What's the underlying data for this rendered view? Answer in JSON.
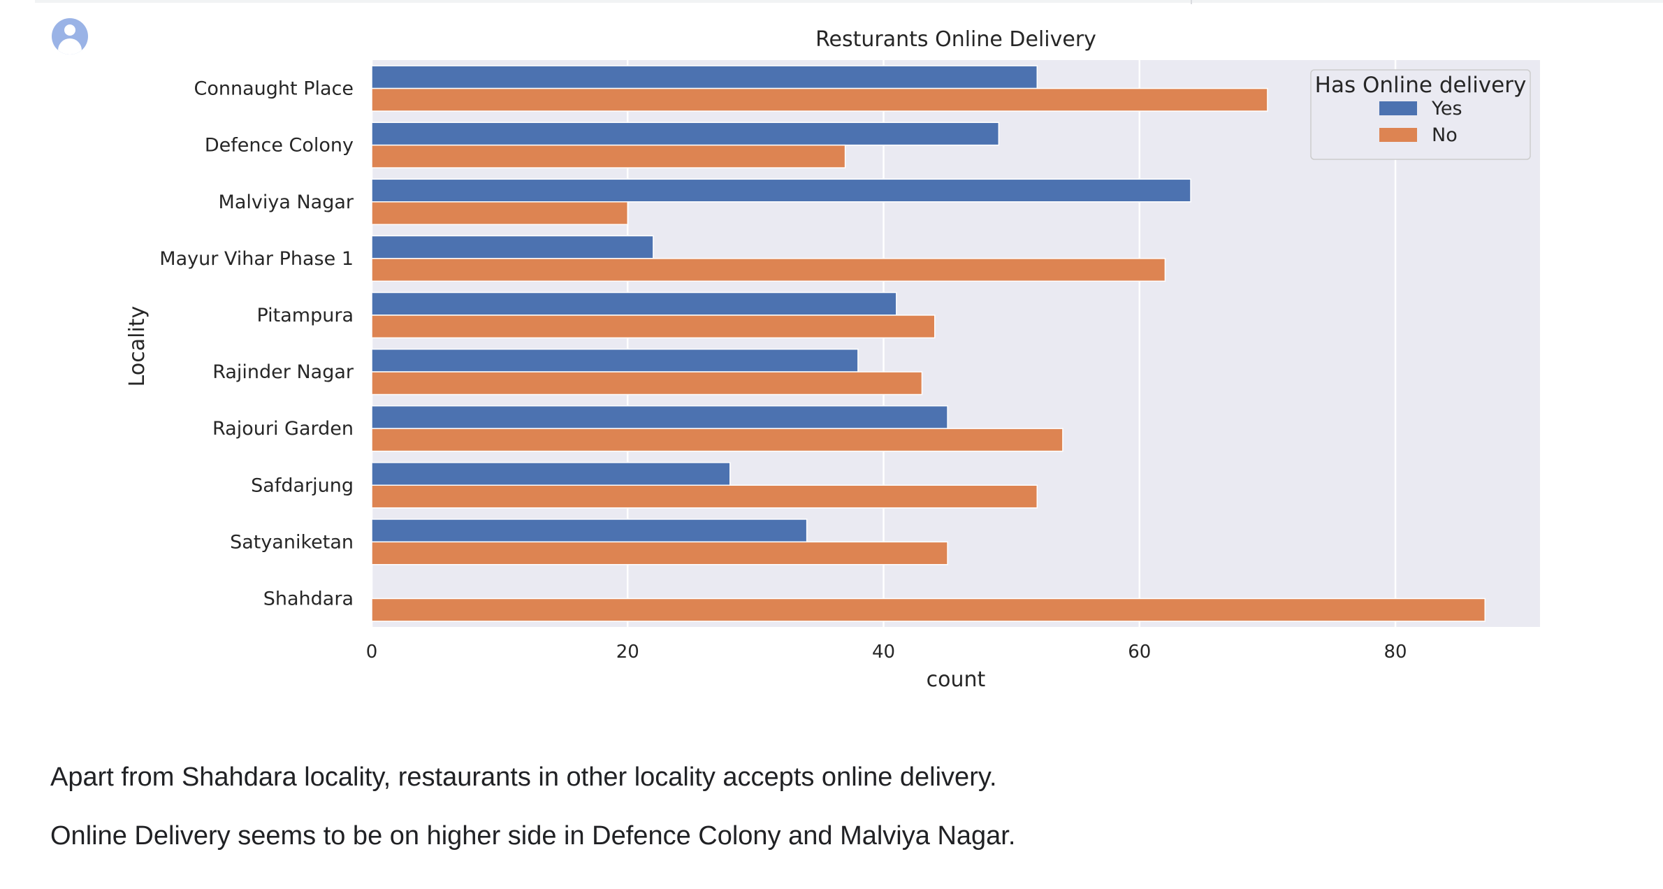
{
  "output_cell": {
    "avatar_icon": "account-circle-icon"
  },
  "chart_data": {
    "type": "bar",
    "orientation": "horizontal",
    "title": "Resturants Online Delivery",
    "xlabel": "count",
    "ylabel": "Locality",
    "categories": [
      "Connaught Place",
      "Defence Colony",
      "Malviya Nagar",
      "Mayur Vihar Phase 1",
      "Pitampura",
      "Rajinder Nagar",
      "Rajouri Garden",
      "Safdarjung",
      "Satyaniketan",
      "Shahdara"
    ],
    "series": [
      {
        "name": "Yes",
        "color": "#4c72b0",
        "values": [
          52,
          49,
          64,
          22,
          41,
          38,
          45,
          28,
          34,
          0
        ]
      },
      {
        "name": "No",
        "color": "#dd8452",
        "values": [
          70,
          37,
          20,
          62,
          44,
          43,
          54,
          52,
          45,
          87
        ]
      }
    ],
    "xlim": [
      0,
      91.3
    ],
    "xticks": [
      0,
      20,
      40,
      60,
      80
    ],
    "grid": true,
    "legend": {
      "title": "Has Online delivery",
      "placement": "top-right"
    },
    "background": "#eaeaf2"
  },
  "notes": [
    "Apart from Shahdara locality, restaurants in other locality accepts online delivery.",
    "Online Delivery seems to be on higher side in Defence Colony and Malviya Nagar."
  ]
}
